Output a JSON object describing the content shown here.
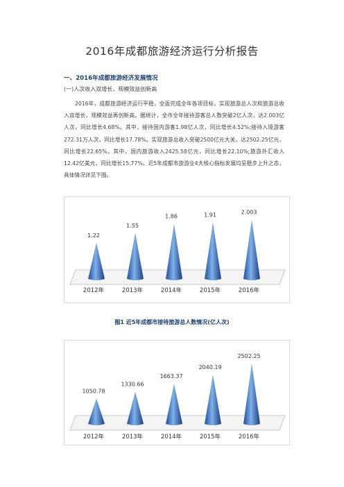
{
  "doc": {
    "title": "2016年成都旅游经济运行分析报告",
    "section1": "一、2016年成都旅游经济发展情况",
    "subsection1": "(一)人次收入双增长，规模效益创新高",
    "paragraph1": "2016年，成都旅游经济运行平稳，全面完成全年各项目标，实现旅游总人次和旅游总收入双增长，规模效益再创新高。据统计，全市全年接待游客总人数突破2亿人次，达2.003亿人次，同比增长4.68%。其中，接待国内游客1.98亿人次，同比增长4.52%;接待入境游客272.31万人次，同比增长17.78%。实现旅游总收入突破2500亿元大关，达2502.25亿元，同比增长22.65%。其中，国内旅游收入2425.58亿元，同比增长22.10%;旅游外汇收入12.42亿美元，同比增长15.77%。近5年成都市旅游业4大核心指标发展均呈稳步上升之态，具体情况详见下图。",
    "figure1_caption": "图1 近5年成都市接待旅游总人数情况(亿人次)"
  },
  "chart_data": [
    {
      "type": "bar",
      "categories": [
        "2012年",
        "2013年",
        "2014年",
        "2015年",
        "2016年"
      ],
      "values": [
        1.22,
        1.55,
        1.86,
        1.91,
        2.003
      ],
      "labels": [
        "1.22",
        "1.55",
        "1.86",
        "1.91",
        "2.003"
      ],
      "title": "",
      "ylim": [
        0,
        2.2
      ],
      "color": "#3b74c4"
    },
    {
      "type": "bar",
      "categories": [
        "2012年",
        "2013年",
        "2014年",
        "2015年",
        "2016年"
      ],
      "values": [
        1050.78,
        1330.66,
        1663.37,
        2040.19,
        2502.25
      ],
      "labels": [
        "1050.78",
        "1330.66",
        "1663.37",
        "2040.19",
        "2502.25"
      ],
      "title": "",
      "ylim": [
        0,
        2700
      ],
      "color": "#3b74c4"
    }
  ]
}
